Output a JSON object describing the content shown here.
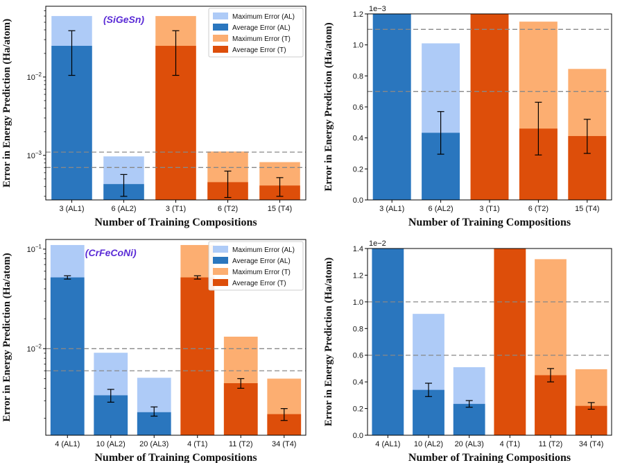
{
  "colors": {
    "al_max": "#aecbf7",
    "al_avg": "#2a76be",
    "t_max": "#fcae71",
    "t_avg": "#dd4e0a",
    "ref_line": "#888888",
    "error_bar": "#000000",
    "title_color": "#5a2bd6"
  },
  "legend": {
    "items": [
      "Maximum Error (AL)",
      "Average Error (AL)",
      "Maximum Error (T)",
      "Average Error (T)"
    ]
  },
  "chart_data": [
    {
      "type": "bar",
      "scale": "log",
      "title": "(SiGeSn)",
      "xlabel": "Number of Training Compositions",
      "ylabel": "Error in Energy Prediction (Ha/atom)",
      "ylim": [
        0.00027,
        0.08
      ],
      "yticks": [
        {
          "value": 0.001,
          "base": "10",
          "exp": "−3"
        },
        {
          "value": 0.01,
          "base": "10",
          "exp": "−2"
        }
      ],
      "categories": [
        "3 (AL1)",
        "6 (AL2)",
        "3 (T1)",
        "6 (T2)",
        "15 (T4)"
      ],
      "groups": [
        "AL",
        "AL",
        "T",
        "T",
        "T"
      ],
      "series": [
        {
          "name": "Maximum Error",
          "values": [
            0.06,
            0.00097,
            0.06,
            0.00112,
            0.00082
          ]
        },
        {
          "name": "Average Error",
          "values": [
            0.025,
            0.00043,
            0.025,
            0.000455,
            0.000412
          ]
        },
        {
          "name": "Error bar low",
          "values": [
            0.0105,
            0.0003,
            0.0105,
            0.00029,
            0.0003
          ]
        },
        {
          "name": "Error bar high",
          "values": [
            0.039,
            0.00057,
            0.039,
            0.00063,
            0.00052
          ]
        }
      ],
      "hlines": [
        0.0011,
        0.0007
      ],
      "legend": "top-right"
    },
    {
      "type": "bar",
      "scale": "linear",
      "multiplier": "1e−3",
      "xlabel": "Number of Training Compositions",
      "ylabel": "Error in Energy Prediction (Ha/atom)",
      "ylim": [
        0,
        1.2
      ],
      "yticks": [
        "0.0",
        "0.2",
        "0.4",
        "0.6",
        "0.8",
        "1.0",
        "1.2"
      ],
      "categories": [
        "3 (AL1)",
        "6 (AL2)",
        "3 (T1)",
        "6 (T2)",
        "15 (T4)"
      ],
      "groups": [
        "AL",
        "AL",
        "T",
        "T",
        "T"
      ],
      "series": [
        {
          "name": "Maximum Error",
          "values": [
            1.2,
            1.01,
            1.2,
            1.15,
            0.845
          ]
        },
        {
          "name": "Average Error",
          "values": [
            1.2,
            0.433,
            1.2,
            0.46,
            0.412
          ]
        },
        {
          "name": "Error bar low",
          "values": [
            null,
            0.295,
            null,
            0.29,
            0.3
          ]
        },
        {
          "name": "Error bar high",
          "values": [
            null,
            0.57,
            null,
            0.63,
            0.52
          ]
        }
      ],
      "hlines": [
        1.1,
        0.7
      ]
    },
    {
      "type": "bar",
      "scale": "log",
      "title": "(CrFeCoNi)",
      "xlabel": "Number of Training Compositions",
      "ylabel": "Error in Energy Prediction (Ha/atom)",
      "ylim": [
        0.00135,
        0.125
      ],
      "yticks": [
        {
          "value": 0.01,
          "base": "10",
          "exp": "−2"
        },
        {
          "value": 0.1,
          "base": "10",
          "exp": "−1"
        }
      ],
      "categories": [
        "4 (AL1)",
        "10 (AL2)",
        "20 (AL3)",
        "4 (T1)",
        "11 (T2)",
        "34 (T4)"
      ],
      "groups": [
        "AL",
        "AL",
        "AL",
        "T",
        "T",
        "T"
      ],
      "series": [
        {
          "name": "Maximum Error",
          "values": [
            0.11,
            0.0091,
            0.0051,
            0.11,
            0.0132,
            0.005
          ]
        },
        {
          "name": "Average Error",
          "values": [
            0.052,
            0.0034,
            0.0023,
            0.052,
            0.0045,
            0.0022
          ]
        },
        {
          "name": "Error bar low",
          "values": [
            0.05,
            0.0029,
            0.0021,
            0.05,
            0.004,
            0.0019
          ]
        },
        {
          "name": "Error bar high",
          "values": [
            0.054,
            0.0039,
            0.0026,
            0.054,
            0.005,
            0.0025
          ]
        }
      ],
      "hlines": [
        0.01,
        0.006
      ],
      "legend": "top-right"
    },
    {
      "type": "bar",
      "scale": "linear",
      "multiplier": "1e−2",
      "xlabel": "Number of Training Compositions",
      "ylabel": "Error in Energy Prediction (Ha/atom)",
      "ylim": [
        0,
        1.4
      ],
      "yticks": [
        "0.0",
        "0.2",
        "0.4",
        "0.6",
        "0.8",
        "1.0",
        "1.2",
        "1.4"
      ],
      "categories": [
        "4 (AL1)",
        "10 (AL2)",
        "20 (AL3)",
        "4 (T1)",
        "11 (T2)",
        "34 (T4)"
      ],
      "groups": [
        "AL",
        "AL",
        "AL",
        "T",
        "T",
        "T"
      ],
      "series": [
        {
          "name": "Maximum Error",
          "values": [
            1.4,
            0.91,
            0.51,
            1.4,
            1.32,
            0.495
          ]
        },
        {
          "name": "Average Error",
          "values": [
            1.4,
            0.34,
            0.235,
            1.4,
            0.45,
            0.22
          ]
        },
        {
          "name": "Error bar low",
          "values": [
            null,
            0.29,
            0.21,
            null,
            0.4,
            0.195
          ]
        },
        {
          "name": "Error bar high",
          "values": [
            null,
            0.39,
            0.26,
            null,
            0.5,
            0.245
          ]
        }
      ],
      "hlines": [
        1.0,
        0.6
      ]
    }
  ]
}
